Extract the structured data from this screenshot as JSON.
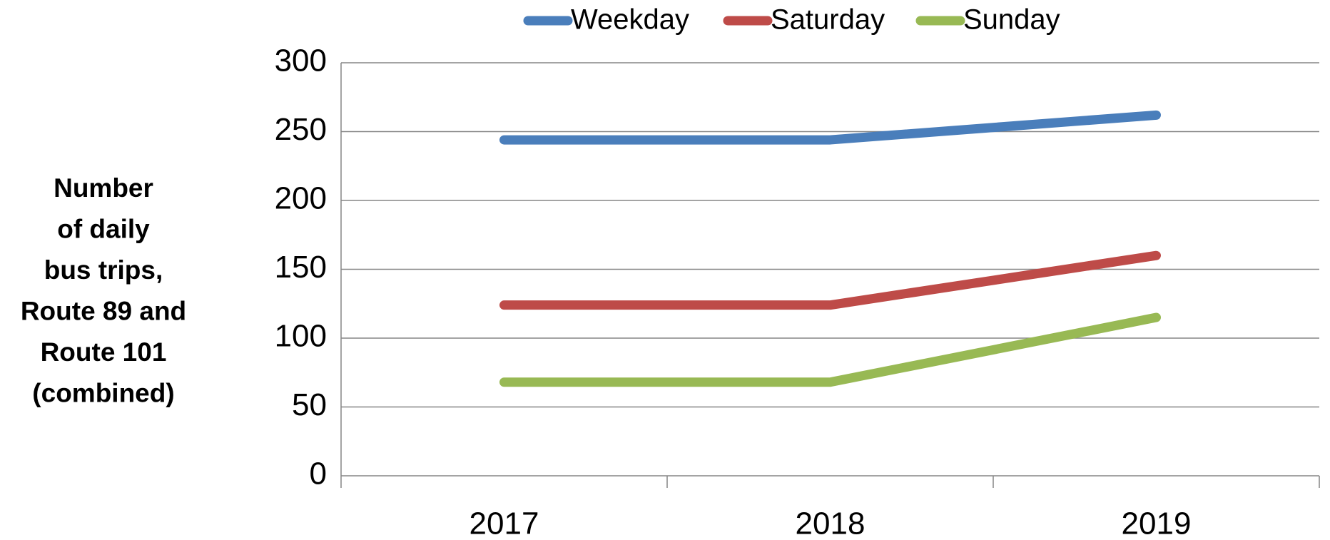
{
  "chart_data": {
    "type": "line",
    "ylabel": [
      "Number",
      "of daily",
      "bus trips,",
      "Route 89 and",
      "Route 101",
      "(combined)"
    ],
    "categories": [
      "2017",
      "2018",
      "2019"
    ],
    "series": [
      {
        "name": "Weekday",
        "color": "#4a7ebb",
        "values": [
          244,
          244,
          262
        ]
      },
      {
        "name": "Saturday",
        "color": "#be4b48",
        "values": [
          124,
          124,
          160
        ]
      },
      {
        "name": "Sunday",
        "color": "#98b954",
        "values": [
          68,
          68,
          115
        ]
      }
    ],
    "ylim": [
      0,
      300
    ],
    "yticks": [
      0,
      50,
      100,
      150,
      200,
      250,
      300
    ],
    "grid": true,
    "legend": "top"
  }
}
